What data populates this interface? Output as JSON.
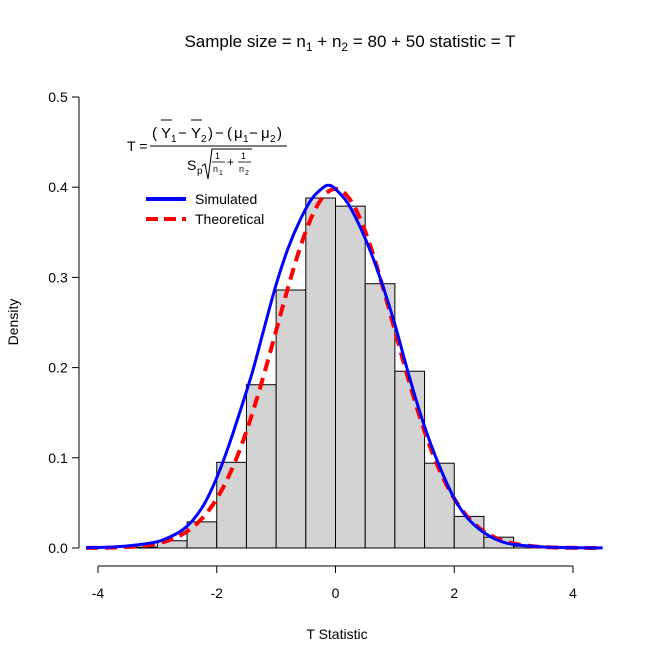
{
  "chart_data": {
    "type": "histogram",
    "title": {
      "parts": [
        {
          "text": "Sample size = n",
          "sub": false
        },
        {
          "text": "1",
          "sub": true
        },
        {
          "text": " + ",
          "sub": false
        },
        {
          "text": "n",
          "sub": false
        },
        {
          "text": "2",
          "sub": true
        },
        {
          "text": " = 80 + 50 statistic = T",
          "sub": false
        }
      ]
    },
    "xlabel": "T Statistic",
    "ylabel": "Density",
    "xlim": [
      -4.3,
      4.6
    ],
    "ylim": [
      0,
      0.5
    ],
    "x_ticks": [
      -4,
      -2,
      0,
      2,
      4
    ],
    "y_ticks": [
      0.0,
      0.1,
      0.2,
      0.3,
      0.4,
      0.5
    ],
    "x_tick_labels": [
      "-4",
      "-2",
      "0",
      "2",
      "4"
    ],
    "y_tick_labels": [
      "0.0",
      "0.1",
      "0.2",
      "0.3",
      "0.4",
      "0.5"
    ],
    "histogram": {
      "bin_edges": [
        -3.5,
        -3.0,
        -2.5,
        -2.0,
        -1.5,
        -1.0,
        -0.5,
        0.0,
        0.5,
        1.0,
        1.5,
        2.0,
        2.5,
        3.0,
        3.5
      ],
      "density": [
        0.001,
        0.008,
        0.029,
        0.095,
        0.181,
        0.286,
        0.388,
        0.379,
        0.293,
        0.196,
        0.094,
        0.035,
        0.012,
        0.002
      ],
      "fill_color": "#d3d3d3",
      "border_color": "#000000"
    },
    "series": [
      {
        "name": "Simulated",
        "color": "#0000ff",
        "dash": "solid",
        "x": [
          -4.2,
          -3.8,
          -3.4,
          -3.0,
          -2.8,
          -2.6,
          -2.4,
          -2.2,
          -2.0,
          -1.8,
          -1.6,
          -1.4,
          -1.2,
          -1.0,
          -0.8,
          -0.6,
          -0.4,
          -0.2,
          -0.1,
          0.0,
          0.2,
          0.4,
          0.6,
          0.8,
          1.0,
          1.2,
          1.4,
          1.6,
          1.8,
          2.0,
          2.2,
          2.4,
          2.6,
          2.8,
          3.0,
          3.4,
          3.8,
          4.2,
          4.5
        ],
        "y": [
          0.0003,
          0.001,
          0.003,
          0.007,
          0.012,
          0.019,
          0.031,
          0.05,
          0.078,
          0.113,
          0.153,
          0.195,
          0.244,
          0.292,
          0.332,
          0.363,
          0.387,
          0.4,
          0.402,
          0.398,
          0.383,
          0.358,
          0.327,
          0.29,
          0.248,
          0.2,
          0.155,
          0.116,
          0.083,
          0.055,
          0.035,
          0.022,
          0.013,
          0.007,
          0.004,
          0.0015,
          0.0005,
          0.0002,
          0.0001
        ]
      },
      {
        "name": "Theoretical",
        "color": "#ff0000",
        "dash": "dashed",
        "distribution": "t",
        "df": 128,
        "x_range": [
          -4.2,
          4.5
        ]
      }
    ],
    "legend": {
      "position": "top-left",
      "entries": [
        {
          "label": "Simulated",
          "color": "#0000ff",
          "dash": "solid"
        },
        {
          "label": "Theoretical",
          "color": "#ff0000",
          "dash": "dashed"
        }
      ]
    },
    "formula": {
      "lhs": "T =",
      "Y": "Y",
      "sub1": "1",
      "sub2": "2",
      "mu": "μ",
      "minus": "−",
      "plus": "+",
      "open_paren": "(",
      "close_paren": ")",
      "S": "S",
      "p": "p",
      "one": "1",
      "n": "n"
    },
    "grid": false
  }
}
